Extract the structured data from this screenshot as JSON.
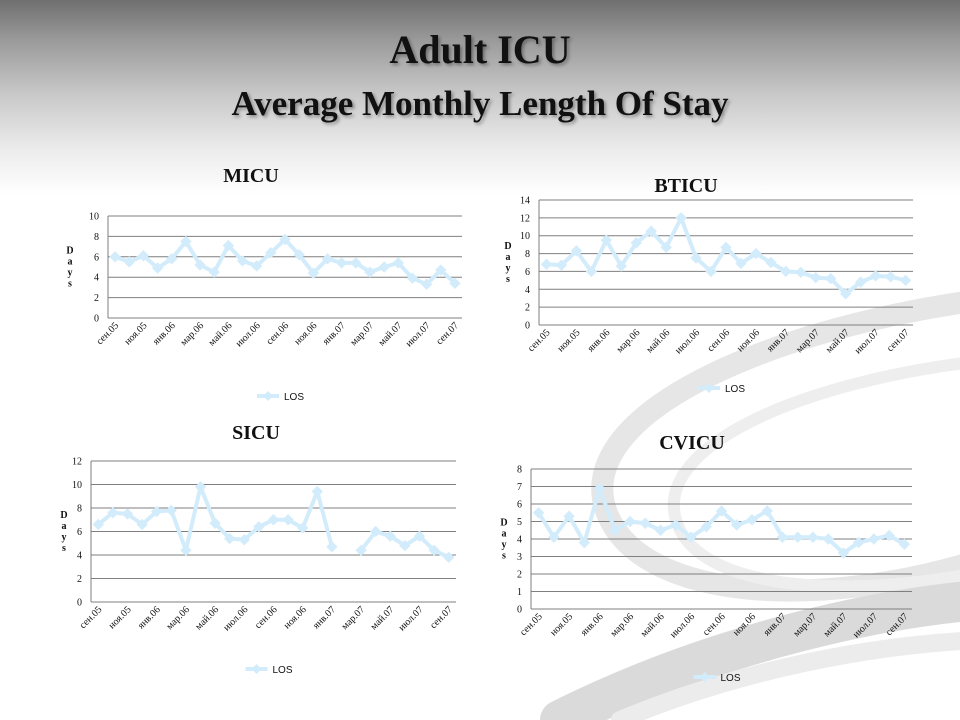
{
  "slide": {
    "title": "Adult ICU",
    "subtitle": "Average Monthly Length Of Stay"
  },
  "colors": {
    "series": "#d3ecfb",
    "gridline": "#7f7f7f",
    "text": "#111111"
  },
  "chart_data": [
    {
      "id": "micu",
      "type": "line",
      "title": "MICU",
      "ylabel": "Days",
      "ylim": [
        0,
        10
      ],
      "yticks": [
        0,
        2,
        4,
        6,
        8,
        10
      ],
      "grid": true,
      "legend_position": "bottom",
      "xtick_labels": [
        "сен.05",
        "ноя.05",
        "янв.06",
        "мар.06",
        "май.06",
        "июл.06",
        "сен.06",
        "ноя.06",
        "янв.07",
        "мар.07",
        "май.07",
        "июл.07",
        "сен.07"
      ],
      "x": [
        "сен.05",
        "окт.05",
        "ноя.05",
        "дек.05",
        "янв.06",
        "фев.06",
        "мар.06",
        "апр.06",
        "май.06",
        "июн.06",
        "июл.06",
        "авг.06",
        "сен.06",
        "окт.06",
        "ноя.06",
        "дек.06",
        "янв.07",
        "фев.07",
        "мар.07",
        "апр.07",
        "май.07",
        "июн.07",
        "июл.07",
        "авг.07",
        "сен.07"
      ],
      "series": [
        {
          "name": "LOS",
          "values": [
            6.0,
            5.5,
            6.1,
            4.9,
            5.8,
            7.5,
            5.2,
            4.5,
            7.1,
            5.6,
            5.1,
            6.4,
            7.7,
            6.2,
            4.4,
            5.8,
            5.4,
            5.4,
            4.5,
            5.0,
            5.4,
            3.9,
            3.3,
            4.7,
            3.4
          ]
        }
      ]
    },
    {
      "id": "bticu",
      "type": "line",
      "title": "BTICU",
      "ylabel": "Days",
      "ylim": [
        0,
        14
      ],
      "yticks": [
        0,
        2,
        4,
        6,
        8,
        10,
        12,
        14
      ],
      "grid": true,
      "legend_position": "bottom",
      "xtick_labels": [
        "сен.05",
        "ноя.05",
        "янв.06",
        "мар.06",
        "май.06",
        "июл.06",
        "сен.06",
        "ноя.06",
        "янв.07",
        "мар.07",
        "май.07",
        "июл.07",
        "сен.07"
      ],
      "x": [
        "сен.05",
        "окт.05",
        "ноя.05",
        "дек.05",
        "янв.06",
        "фев.06",
        "мар.06",
        "апр.06",
        "май.06",
        "июн.06",
        "июл.06",
        "авг.06",
        "сен.06",
        "окт.06",
        "ноя.06",
        "дек.06",
        "янв.07",
        "фев.07",
        "мар.07",
        "апр.07",
        "май.07",
        "июн.07",
        "июл.07",
        "авг.07",
        "сен.07"
      ],
      "series": [
        {
          "name": "LOS",
          "values": [
            6.8,
            6.7,
            8.3,
            6.0,
            9.5,
            6.6,
            9.2,
            10.5,
            8.7,
            12.0,
            7.5,
            6.0,
            8.7,
            6.9,
            8.0,
            7.0,
            6.0,
            5.9,
            5.3,
            5.2,
            3.5,
            4.8,
            5.5,
            5.4,
            5.0
          ]
        }
      ]
    },
    {
      "id": "sicu",
      "type": "line",
      "title": "SICU",
      "ylabel": "Days",
      "ylim": [
        0,
        12
      ],
      "yticks": [
        0,
        2,
        4,
        6,
        8,
        10,
        12
      ],
      "grid": true,
      "legend_position": "bottom",
      "xtick_labels": [
        "сен.05",
        "ноя.05",
        "янв.06",
        "мар.06",
        "май.06",
        "июл.06",
        "сен.06",
        "ноя.06",
        "янв.07",
        "мар.07",
        "май.07",
        "июл.07",
        "сен.07"
      ],
      "x": [
        "сен.05",
        "окт.05",
        "ноя.05",
        "дек.05",
        "янв.06",
        "фев.06",
        "мар.06",
        "апр.06",
        "май.06",
        "июн.06",
        "июл.06",
        "авг.06",
        "сен.06",
        "окт.06",
        "ноя.06",
        "дек.06",
        "янв.07",
        "фев.07",
        "мар.07",
        "апр.07",
        "май.07",
        "июн.07",
        "июл.07",
        "авг.07",
        "сен.07"
      ],
      "series": [
        {
          "name": "LOS",
          "values": [
            6.6,
            7.6,
            7.5,
            6.6,
            7.7,
            7.8,
            4.4,
            9.8,
            6.7,
            5.4,
            5.3,
            6.4,
            7.0,
            7.0,
            6.3,
            9.4,
            4.7,
            null,
            4.4,
            6.0,
            5.6,
            4.8,
            5.6,
            4.4,
            3.8
          ]
        }
      ]
    },
    {
      "id": "cvicu",
      "type": "line",
      "title": "CVICU",
      "ylabel": "Days",
      "ylim": [
        0,
        8
      ],
      "yticks": [
        0,
        1,
        2,
        3,
        4,
        5,
        6,
        7,
        8
      ],
      "grid": true,
      "legend_position": "bottom",
      "xtick_labels": [
        "сен.05",
        "ноя.05",
        "янв.06",
        "мар.06",
        "май.06",
        "июл.06",
        "сен.06",
        "ноя.06",
        "янв.07",
        "мар.07",
        "май.07",
        "июл.07",
        "сен.07"
      ],
      "x": [
        "сен.05",
        "окт.05",
        "ноя.05",
        "дек.05",
        "янв.06",
        "фев.06",
        "мар.06",
        "апр.06",
        "май.06",
        "июн.06",
        "июл.06",
        "авг.06",
        "сен.06",
        "окт.06",
        "ноя.06",
        "дек.06",
        "янв.07",
        "фев.07",
        "мар.07",
        "апр.07",
        "май.07",
        "июн.07",
        "июл.07",
        "авг.07",
        "сен.07"
      ],
      "series": [
        {
          "name": "LOS",
          "values": [
            5.5,
            4.1,
            5.3,
            3.8,
            6.9,
            4.5,
            5.0,
            4.9,
            4.5,
            4.8,
            4.1,
            4.7,
            5.6,
            4.8,
            5.1,
            5.6,
            4.1,
            4.1,
            4.1,
            4.0,
            3.2,
            3.8,
            4.0,
            4.2,
            3.7
          ]
        }
      ]
    }
  ]
}
